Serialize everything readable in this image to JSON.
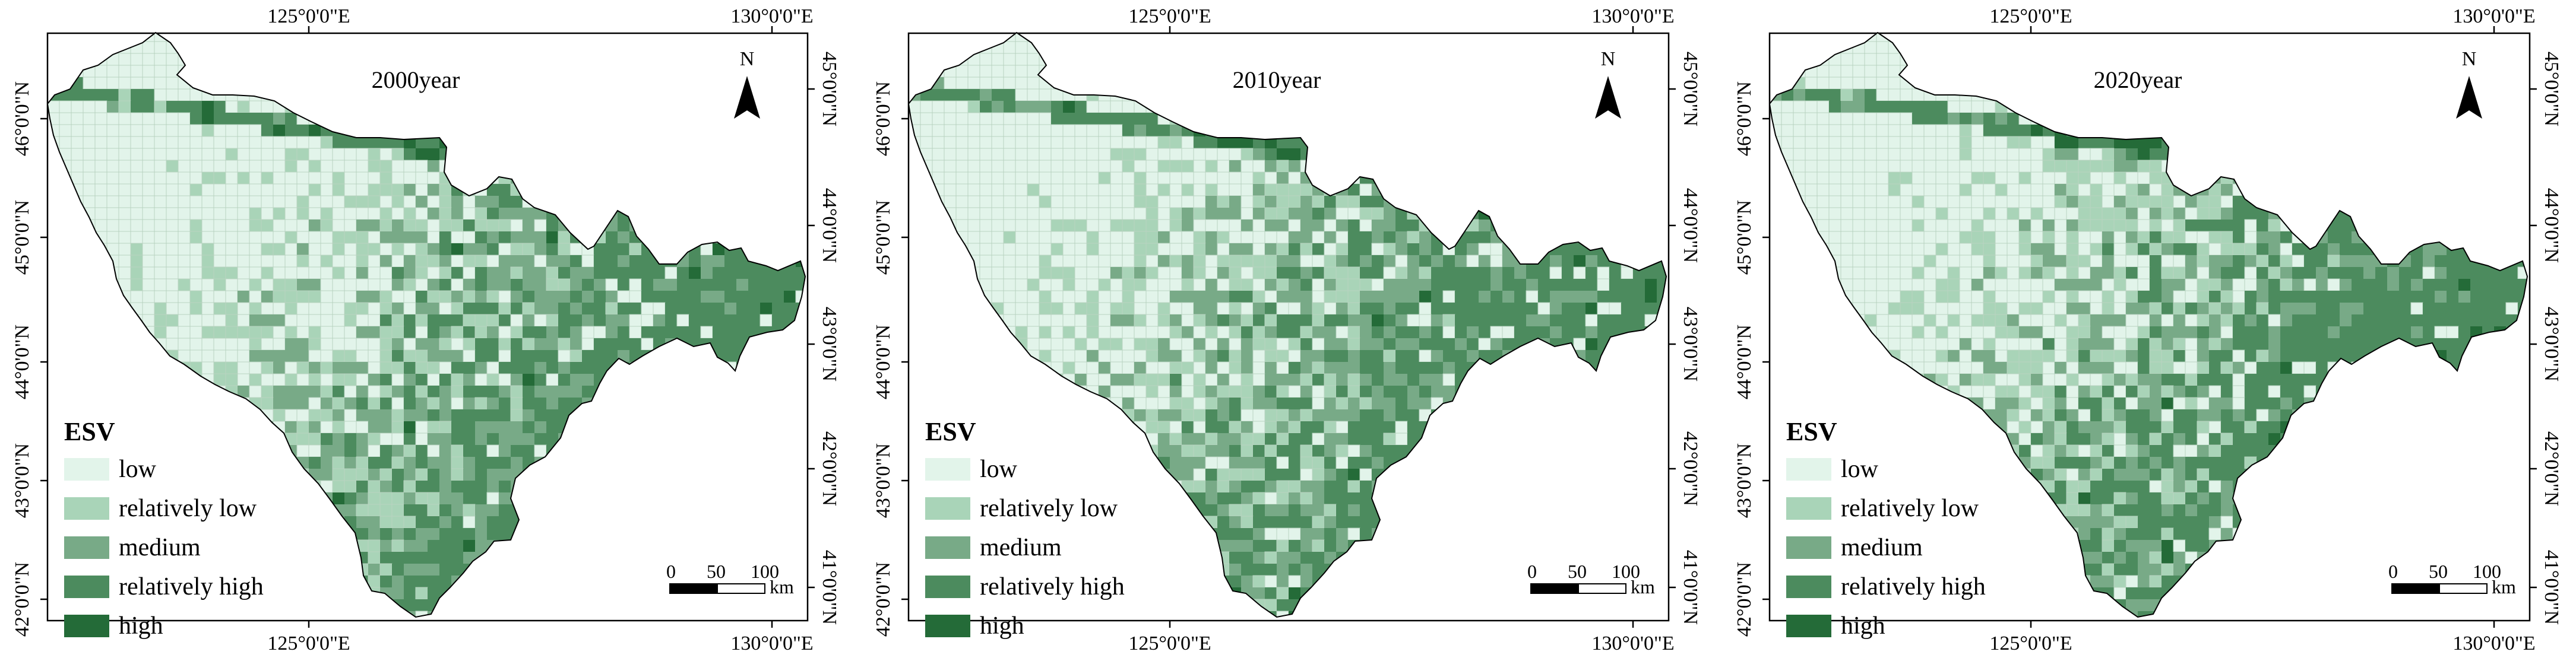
{
  "colors": {
    "low": "#e2f4ea",
    "relatively_low": "#a9d4b8",
    "medium": "#78aa87",
    "relatively_high": "#4c8b5e",
    "high": "#246b38",
    "outline": "#000000",
    "grid": "#b9d3c1"
  },
  "axis_labels": {
    "x_top": [
      "125°0'0\"E",
      "130°0'0\"E"
    ],
    "x_bottom": [
      "125°0'0\"E",
      "130°0'0\"E"
    ],
    "y_left": [
      "46°0'0\"N",
      "45°0'0\"N",
      "44°0'0\"N",
      "43°0'0\"N",
      "42°0'0\"N"
    ],
    "y_right": [
      "45°0'0\"N",
      "44°0'0\"N",
      "43°0'0\"N",
      "42°0'0\"N",
      "41°0'0\"N"
    ]
  },
  "north_arrow": {
    "label": "N",
    "icon": "north-arrow-icon"
  },
  "legend": {
    "title": "ESV",
    "items": [
      {
        "key": "low",
        "label": "low"
      },
      {
        "key": "relatively_low",
        "label": "relatively low"
      },
      {
        "key": "medium",
        "label": "medium"
      },
      {
        "key": "relatively_high",
        "label": "relatively high"
      },
      {
        "key": "high",
        "label": "high"
      }
    ]
  },
  "scale_bar": {
    "ticks": [
      "0",
      "50",
      "100"
    ],
    "unit": "km"
  },
  "panels": [
    {
      "title": "2000year"
    },
    {
      "title": "2010year"
    },
    {
      "title": "2020year"
    }
  ]
}
